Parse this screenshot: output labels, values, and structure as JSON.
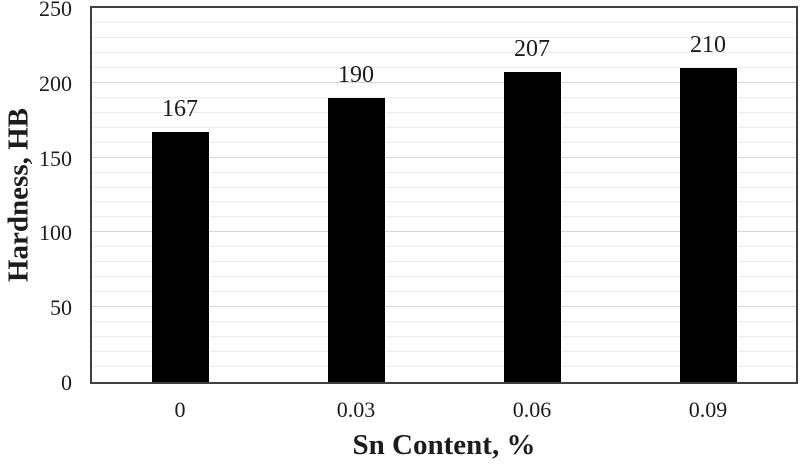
{
  "chart_data": {
    "type": "bar",
    "title": "",
    "xlabel": "Sn Content, %",
    "ylabel": "Hardness, HB",
    "categories": [
      "0",
      "0.03",
      "0.06",
      "0.09"
    ],
    "values": [
      167,
      190,
      207,
      210
    ],
    "data_labels": [
      "167",
      "190",
      "207",
      "210"
    ],
    "ylim": [
      0,
      250
    ],
    "y_major_ticks": [
      0,
      50,
      100,
      150,
      200,
      250
    ],
    "y_tick_labels": [
      "0",
      "50",
      "100",
      "150",
      "200",
      "250"
    ],
    "y_minor_step": 10,
    "grid": "horizontal-minor-and-major",
    "legend": "none",
    "bar_color": "#000000",
    "colors": {
      "background": "#ffffff",
      "axis_border": "#404040",
      "major_gridline": "#d6d6d6",
      "minor_gridline": "#ededed",
      "text": "#1c1c1c"
    }
  }
}
